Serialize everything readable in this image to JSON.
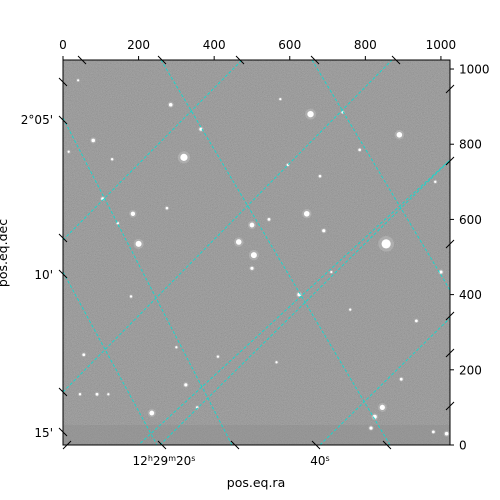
{
  "chart_data": {
    "type": "image",
    "description_terms": "astronomical image with WCS grid",
    "pixel_axes": {
      "x_ticks": [
        "0",
        "200",
        "400",
        "600",
        "800",
        "1000"
      ],
      "x_tick_values": [
        0,
        200,
        400,
        600,
        800,
        1000
      ],
      "y_ticks": [
        "0",
        "200",
        "400",
        "600",
        "800",
        "1000"
      ],
      "y_tick_values": [
        0,
        200,
        400,
        600,
        800,
        1000
      ],
      "xlim": [
        0,
        1024
      ],
      "ylim": [
        0,
        1024
      ]
    },
    "world_axes": {
      "xlabel": "pos.eq.ra",
      "ylabel": "pos.eq.dec",
      "ra_ticks": [
        {
          "h": "12",
          "m": "29",
          "s": "20"
        },
        {
          "s": "40"
        }
      ],
      "dec_ticks": [
        {
          "label": "2°05'"
        },
        {
          "label": "10'"
        },
        {
          "label": "15'"
        }
      ]
    },
    "grid": true,
    "grid_color": "#19d6cc",
    "colormap": "gray",
    "stars": [
      {
        "x": 320,
        "y": 765,
        "r": 3.6
      },
      {
        "x": 655,
        "y": 880,
        "r": 3.2
      },
      {
        "x": 890,
        "y": 825,
        "r": 2.8
      },
      {
        "x": 645,
        "y": 615,
        "r": 2.8
      },
      {
        "x": 200,
        "y": 535,
        "r": 3
      },
      {
        "x": 465,
        "y": 540,
        "r": 2.8
      },
      {
        "x": 505,
        "y": 505,
        "r": 3
      },
      {
        "x": 500,
        "y": 585,
        "r": 2.4
      },
      {
        "x": 855,
        "y": 535,
        "r": 4.6
      },
      {
        "x": 185,
        "y": 615,
        "r": 2.2
      },
      {
        "x": 285,
        "y": 905,
        "r": 1.8
      },
      {
        "x": 365,
        "y": 840,
        "r": 1.6
      },
      {
        "x": 235,
        "y": 85,
        "r": 2.4
      },
      {
        "x": 845,
        "y": 100,
        "r": 2.6
      },
      {
        "x": 825,
        "y": 75,
        "r": 2
      },
      {
        "x": 80,
        "y": 810,
        "r": 1.8
      },
      {
        "x": 625,
        "y": 400,
        "r": 1.8
      },
      {
        "x": 690,
        "y": 570,
        "r": 1.6
      },
      {
        "x": 500,
        "y": 470,
        "r": 1.6
      },
      {
        "x": 1000,
        "y": 460,
        "r": 1.6
      },
      {
        "x": 105,
        "y": 655,
        "r": 1.5
      },
      {
        "x": 180,
        "y": 395,
        "r": 1.2
      },
      {
        "x": 55,
        "y": 240,
        "r": 1.4
      },
      {
        "x": 325,
        "y": 160,
        "r": 1.6
      },
      {
        "x": 1015,
        "y": 30,
        "r": 1.8
      },
      {
        "x": 980,
        "y": 35,
        "r": 1.4
      },
      {
        "x": 90,
        "y": 135,
        "r": 1.4
      },
      {
        "x": 355,
        "y": 100,
        "r": 1.2
      },
      {
        "x": 895,
        "y": 175,
        "r": 1.4
      },
      {
        "x": 935,
        "y": 330,
        "r": 1.4
      },
      {
        "x": 680,
        "y": 715,
        "r": 1.3
      },
      {
        "x": 785,
        "y": 785,
        "r": 1.3
      },
      {
        "x": 130,
        "y": 760,
        "r": 1.2
      },
      {
        "x": 145,
        "y": 590,
        "r": 1.2
      },
      {
        "x": 45,
        "y": 135,
        "r": 1.2
      },
      {
        "x": 815,
        "y": 45,
        "r": 1.6
      },
      {
        "x": 545,
        "y": 600,
        "r": 1.4
      },
      {
        "x": 275,
        "y": 630,
        "r": 1.3
      },
      {
        "x": 740,
        "y": 885,
        "r": 1.2
      },
      {
        "x": 410,
        "y": 235,
        "r": 1.2
      },
      {
        "x": 595,
        "y": 745,
        "r": 1.2
      },
      {
        "x": 985,
        "y": 700,
        "r": 1.2
      },
      {
        "x": 120,
        "y": 135,
        "r": 1.1
      },
      {
        "x": 300,
        "y": 260,
        "r": 1.1
      },
      {
        "x": 760,
        "y": 360,
        "r": 1.1
      },
      {
        "x": 565,
        "y": 220,
        "r": 1.1
      },
      {
        "x": 710,
        "y": 460,
        "r": 1.1
      },
      {
        "x": 15,
        "y": 780,
        "r": 1.1
      },
      {
        "x": 575,
        "y": 920,
        "r": 1.1
      },
      {
        "x": 40,
        "y": 970,
        "r": 1.1
      }
    ]
  }
}
